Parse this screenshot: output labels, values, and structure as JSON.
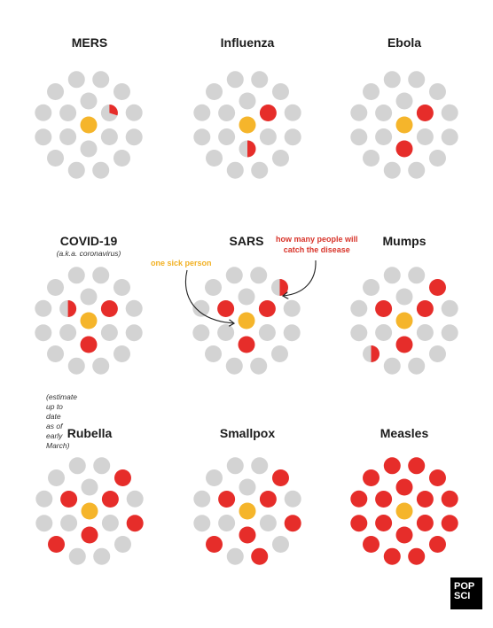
{
  "colors": {
    "background": "#ffffff",
    "grey_dot": "#d3d3d3",
    "infected_red": "#e62d2a",
    "sick_person_yellow": "#f5b52b",
    "annotation_yellow": "#f2b124",
    "annotation_red": "#d8342a"
  },
  "legend": {
    "one_sick_person": "one sick person",
    "how_many_line1": "how many people will",
    "how_many_line2": "catch the disease"
  },
  "diseases": [
    {
      "name": "MERS",
      "infected": [
        {
          "index": 1,
          "fraction": 0.3
        }
      ]
    },
    {
      "name": "Influenza",
      "infected": [
        {
          "index": 1,
          "fraction": 1.0
        },
        {
          "index": 3,
          "fraction": 0.5
        }
      ]
    },
    {
      "name": "Ebola",
      "infected": [
        {
          "index": 1,
          "fraction": 1.0
        },
        {
          "index": 3,
          "fraction": 1.0
        }
      ]
    },
    {
      "name": "COVID-19",
      "subtitle": "(a.k.a. coronavirus)",
      "note_line1": "(estimate up to date",
      "note_line2": "as of early March)",
      "infected": [
        {
          "index": 1,
          "fraction": 1.0
        },
        {
          "index": 3,
          "fraction": 1.0
        },
        {
          "index": 5,
          "fraction": 0.5
        }
      ]
    },
    {
      "name": "SARS",
      "infected": [
        {
          "index": 1,
          "fraction": 1.0
        },
        {
          "index": 3,
          "fraction": 1.0
        },
        {
          "index": 5,
          "fraction": 1.0
        },
        {
          "index": 7,
          "fraction": 0.5
        }
      ]
    },
    {
      "name": "Mumps",
      "infected": [
        {
          "index": 1,
          "fraction": 1.0
        },
        {
          "index": 3,
          "fraction": 1.0
        },
        {
          "index": 5,
          "fraction": 1.0
        },
        {
          "index": 7,
          "fraction": 1.0
        },
        {
          "index": 13,
          "fraction": 0.5
        }
      ]
    },
    {
      "name": "Rubella",
      "infected": [
        {
          "index": 1,
          "fraction": 1.0
        },
        {
          "index": 3,
          "fraction": 1.0
        },
        {
          "index": 5,
          "fraction": 1.0
        },
        {
          "index": 7,
          "fraction": 1.0
        },
        {
          "index": 9,
          "fraction": 1.0
        },
        {
          "index": 13,
          "fraction": 1.0
        }
      ]
    },
    {
      "name": "Smallpox",
      "infected": [
        {
          "index": 1,
          "fraction": 1.0
        },
        {
          "index": 3,
          "fraction": 1.0
        },
        {
          "index": 5,
          "fraction": 1.0
        },
        {
          "index": 7,
          "fraction": 1.0
        },
        {
          "index": 9,
          "fraction": 1.0
        },
        {
          "index": 11,
          "fraction": 1.0
        },
        {
          "index": 13,
          "fraction": 1.0
        }
      ]
    },
    {
      "name": "Measles",
      "infected": [
        {
          "index": 0,
          "fraction": 1.0
        },
        {
          "index": 1,
          "fraction": 1.0
        },
        {
          "index": 2,
          "fraction": 1.0
        },
        {
          "index": 3,
          "fraction": 1.0
        },
        {
          "index": 4,
          "fraction": 1.0
        },
        {
          "index": 5,
          "fraction": 1.0
        },
        {
          "index": 6,
          "fraction": 1.0
        },
        {
          "index": 7,
          "fraction": 1.0
        },
        {
          "index": 8,
          "fraction": 1.0
        },
        {
          "index": 9,
          "fraction": 1.0
        },
        {
          "index": 10,
          "fraction": 1.0
        },
        {
          "index": 11,
          "fraction": 1.0
        },
        {
          "index": 12,
          "fraction": 1.0
        },
        {
          "index": 13,
          "fraction": 1.0
        },
        {
          "index": 14,
          "fraction": 1.0
        },
        {
          "index": 15,
          "fraction": 1.0
        },
        {
          "index": 16,
          "fraction": 1.0
        },
        {
          "index": 17,
          "fraction": 1.0
        }
      ]
    }
  ],
  "logo": {
    "line1": "POP",
    "line2": "SCI"
  }
}
